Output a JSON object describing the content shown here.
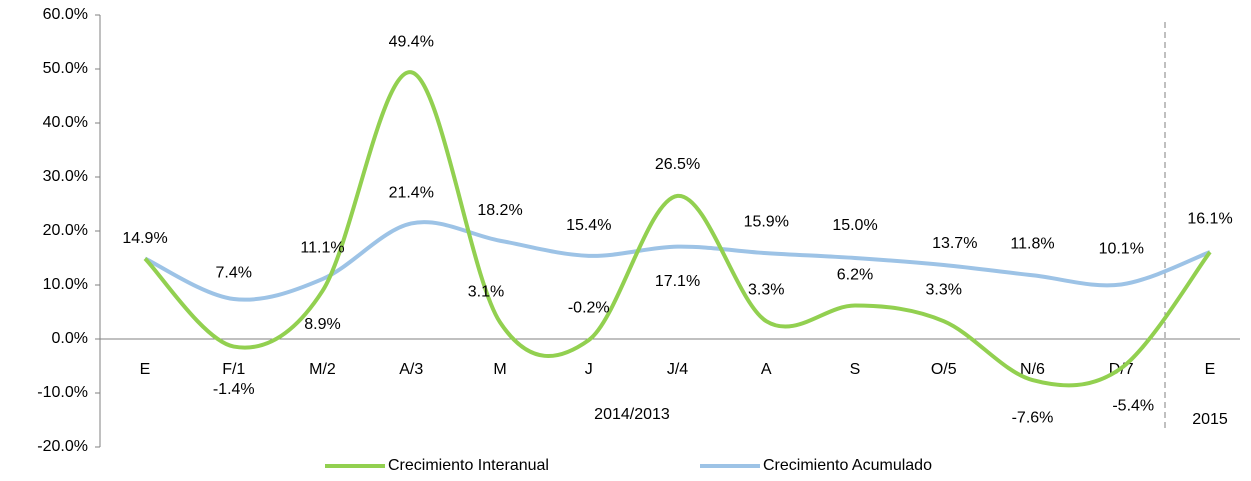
{
  "chart_data": {
    "type": "line",
    "categories": [
      "E",
      "F/1",
      "M/2",
      "A/3",
      "M",
      "J",
      "J/4",
      "A",
      "S",
      "O/5",
      "N/6",
      "D/7",
      "E"
    ],
    "group_labels": [
      "2014/2013",
      "2015"
    ],
    "series": [
      {
        "name": "Crecimiento Interanual",
        "color": "#92d050",
        "values": [
          14.9,
          -1.4,
          8.9,
          49.4,
          3.1,
          -0.2,
          26.5,
          3.3,
          6.2,
          3.3,
          -7.6,
          -5.4,
          16.1
        ],
        "value_labels": [
          null,
          "-1.4%",
          "8.9%",
          "49.4%",
          "3.1%",
          "-0.2%",
          "26.5%",
          "3.3%",
          "6.2%",
          "3.3%",
          "-7.6%",
          "-5.4%",
          null
        ]
      },
      {
        "name": "Crecimiento Acumulado",
        "color": "#9dc3e6",
        "values": [
          14.9,
          7.4,
          11.1,
          21.4,
          18.2,
          15.4,
          17.1,
          15.9,
          15.0,
          13.7,
          11.8,
          10.1,
          16.1
        ],
        "value_labels": [
          "14.9%",
          "7.4%",
          "11.1%",
          "21.4%",
          "18.2%",
          "15.4%",
          "17.1%",
          "15.9%",
          "15.0%",
          "13.7%",
          "11.8%",
          "10.1%",
          "16.1%"
        ]
      }
    ],
    "ylim": [
      -20,
      60
    ],
    "yticks": [
      {
        "value": -20,
        "label": "-20.0%"
      },
      {
        "value": -10,
        "label": "-10.0%"
      },
      {
        "value": 0,
        "label": "0.0%"
      },
      {
        "value": 10,
        "label": "10.0%"
      },
      {
        "value": 20,
        "label": "20.0%"
      },
      {
        "value": 30,
        "label": "30.0%"
      },
      {
        "value": 40,
        "label": "40.0%"
      },
      {
        "value": 50,
        "label": "50.0%"
      },
      {
        "value": 60,
        "label": "60.0%"
      }
    ],
    "grid": false,
    "legend": "bottom"
  }
}
